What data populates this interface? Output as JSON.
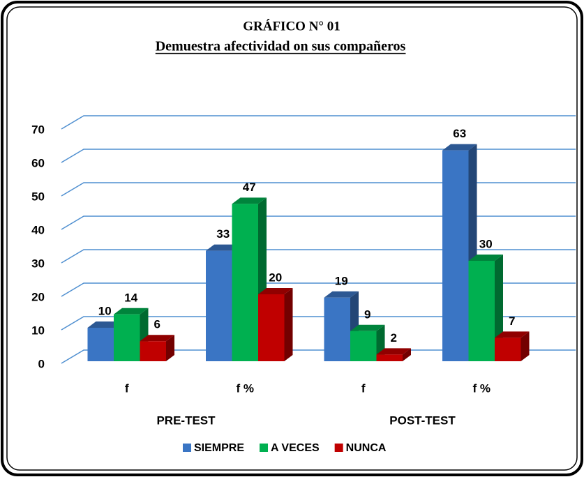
{
  "chart_data": {
    "type": "bar3d",
    "title": "GRÁFICO N° 01",
    "subtitle": "Demuestra afectividad on sus compañeros",
    "categories": [
      "f",
      "f %",
      "f",
      "f %"
    ],
    "group_labels": [
      "PRE-TEST",
      "POST-TEST"
    ],
    "series": [
      {
        "name": "SIEMPRE",
        "color": "#3a75c4",
        "values": [
          10,
          33,
          19,
          63
        ]
      },
      {
        "name": "A VECES",
        "color": "#00b050",
        "values": [
          14,
          47,
          9,
          30
        ]
      },
      {
        "name": "NUNCA",
        "color": "#c00000",
        "values": [
          6,
          20,
          2,
          7
        ]
      }
    ],
    "ylim": [
      0,
      70
    ],
    "yticks": [
      0,
      10,
      20,
      30,
      40,
      50,
      60,
      70
    ],
    "grid": true,
    "legend": "bottom"
  }
}
